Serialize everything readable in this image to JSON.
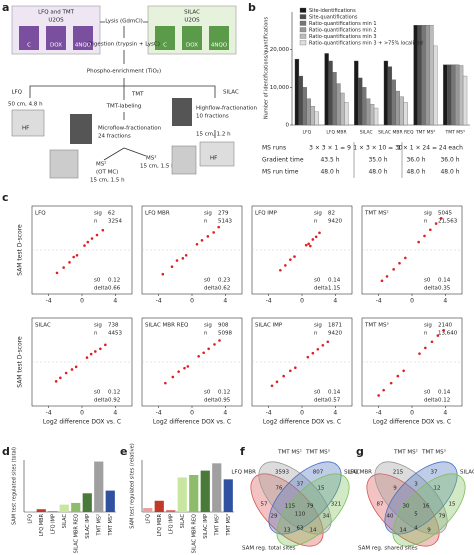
{
  "panel_labels": [
    "a",
    "b",
    "c",
    "d",
    "e",
    "f",
    "g"
  ],
  "diagram": {
    "lfq_tmt": "LFQ and TMT",
    "u2os_1": "U2OS",
    "c_1": "C",
    "dox_1": "DOX",
    "nqo_1": "4NQO",
    "silac": "SILAC",
    "u2os_2": "U2OS",
    "c_2": "C",
    "dox_2": "DOX",
    "nqo_2": "4NQO",
    "lysis": "Lysis (GdmCl)",
    "digestion": "Digestion (trypsin + LysC)",
    "enrichment": "Phospho-enrichment (TiO₂)",
    "lfq": "LFQ",
    "tmt": "TMT",
    "silac_branch": "SILAC",
    "lfq_column": "50 cm, 4.8 h",
    "hf_1": "HF",
    "tmt_labeling": "TMT-labeling",
    "microflow": "Microflow-fractionation",
    "micro_fractions": "24 fractions",
    "highflow": "Highflow-fractionation",
    "high_fractions": "10 fractions",
    "silac_column": "15 cm, 1.2 h",
    "hf_2": "HF",
    "ms2": "MS²",
    "ms2_mode": "(OT MC)",
    "ms2_column": "15 cm, 1.5 h",
    "ms3": "MS³",
    "ms3_column": "15 cm, 1.5 h"
  },
  "chart_data": [
    {
      "type": "grouped_bar",
      "ylabel": "Number of identifications/quantifications",
      "categories": [
        "LFQ",
        "LFQ MBR",
        "SILAC",
        "SILAC MBR REQ",
        "TMT MS²",
        "TMT MS³"
      ],
      "series": [
        {
          "name": "Site-identifications",
          "color": "#1a1a1a",
          "values": [
            17500,
            19000,
            17000,
            17000,
            26500,
            16000
          ]
        },
        {
          "name": "Site-quantifications",
          "color": "#4d4d4d",
          "values": [
            13000,
            17000,
            12500,
            15500,
            26500,
            16000
          ]
        },
        {
          "name": "Ratio-quantifications min 1",
          "color": "#777777",
          "values": [
            10000,
            14000,
            10000,
            12000,
            26500,
            16000
          ]
        },
        {
          "name": "Ratio-quantifications min 2",
          "color": "#999999",
          "values": [
            7000,
            11000,
            7000,
            9000,
            26500,
            16000
          ]
        },
        {
          "name": "Ratio-quantifications min 3",
          "color": "#bbbbbb",
          "values": [
            5000,
            8500,
            5500,
            7500,
            26500,
            15800
          ]
        },
        {
          "name": "Ratio-quantifications min 3 + >75% localized",
          "color": "#dddddd",
          "values": [
            3500,
            6000,
            4500,
            6000,
            21000,
            13000
          ]
        }
      ],
      "ylim": [
        0,
        30000
      ],
      "yticks": [
        0,
        {
          "value": 10000,
          "label": "10,000"
        },
        {
          "value": 20000,
          "label": "20,000"
        }
      ],
      "legend": "top-left"
    },
    {
      "type": "scatter",
      "label": "LFQ",
      "color": "#e02020",
      "xlim": [
        -6,
        6
      ],
      "ylim": [
        -10,
        10
      ],
      "xticks": [
        -4,
        0,
        4
      ],
      "ylabel": "SAM test D-score",
      "stat_names": [
        "sig",
        "n"
      ],
      "stat_values": [
        "62",
        "3254"
      ],
      "fit_names": [
        "s0",
        "delta"
      ],
      "fit_values": [
        "0.12",
        "0.66"
      ],
      "x": [
        -2.2,
        -1.5,
        -1.0,
        -0.6,
        0.3,
        0.7,
        1.2,
        1.8,
        2.5,
        -3.0
      ],
      "y": [
        -4,
        -2.8,
        -1.6,
        -1.2,
        1.0,
        1.8,
        2.6,
        3.4,
        4.5,
        -5.2
      ]
    },
    {
      "type": "scatter",
      "label": "LFQ MBR",
      "color": "#e02020",
      "xlim": [
        -6,
        6
      ],
      "ylim": [
        -10,
        10
      ],
      "xticks": [
        -4,
        0,
        4
      ],
      "stat_names": [
        "sig",
        "n"
      ],
      "stat_values": [
        "279",
        "5143"
      ],
      "fit_names": [
        "s0",
        "delta"
      ],
      "fit_values": [
        "0.23",
        "0.62"
      ],
      "x": [
        -3.5,
        -2.4,
        -1.8,
        -1.1,
        -0.7,
        0.6,
        1.2,
        1.9,
        2.6,
        3.2
      ],
      "y": [
        -5.5,
        -3.8,
        -2.4,
        -1.9,
        -1.2,
        1.3,
        2.2,
        3.1,
        4.0,
        5.2
      ]
    },
    {
      "type": "scatter",
      "label": "LFQ IMP",
      "color": "#e02020",
      "xlim": [
        -6,
        6
      ],
      "ylim": [
        -10,
        10
      ],
      "xticks": [
        -4,
        0,
        4
      ],
      "stat_names": [
        "sig",
        "n"
      ],
      "stat_values": [
        "82",
        "9420"
      ],
      "fit_names": [
        "s0",
        "delta"
      ],
      "fit_values": [
        "0.14",
        "1.15"
      ],
      "x": [
        -2.0,
        -1.4,
        -0.9,
        0.8,
        1.3,
        1.7,
        2.1,
        -2.6,
        0.5,
        1.0
      ],
      "y": [
        -3.5,
        -2.2,
        -1.5,
        1.4,
        2.4,
        3.0,
        3.9,
        -4.6,
        1.1,
        0.9
      ]
    },
    {
      "type": "scatter",
      "label": "TMT MS²",
      "color": "#e02020",
      "xlim": [
        -6,
        6
      ],
      "ylim": [
        -10,
        10
      ],
      "xticks": [
        -4,
        0,
        4
      ],
      "stat_names": [
        "sig",
        "n"
      ],
      "stat_values": [
        "5045",
        "21,563"
      ],
      "fit_names": [
        "s0",
        "delta"
      ],
      "fit_values": [
        "0.14",
        "0.35"
      ],
      "x": [
        -3.0,
        -2.2,
        -1.5,
        -0.8,
        0.8,
        1.5,
        2.2,
        2.9,
        3.5,
        -3.6
      ],
      "y": [
        -6.0,
        -4.4,
        -3.0,
        -1.8,
        1.8,
        3.2,
        4.6,
        6.0,
        7.2,
        -7.0
      ]
    },
    {
      "type": "scatter",
      "label": "SILAC",
      "color": "#e02020",
      "xlim": [
        -6,
        6
      ],
      "ylim": [
        -10,
        10
      ],
      "xticks": [
        -4,
        0,
        4
      ],
      "ylabel": "SAM test D-score",
      "xlabel": "Log2 difference DOX vs. C",
      "stat_names": [
        "sig",
        "n"
      ],
      "stat_values": [
        "738",
        "4453"
      ],
      "fit_names": [
        "s0",
        "delta"
      ],
      "fit_values": [
        "0.12",
        "0.92"
      ],
      "x": [
        -2.6,
        -1.9,
        -1.2,
        -0.7,
        0.6,
        1.1,
        1.6,
        2.2,
        2.8,
        -3.1
      ],
      "y": [
        -3.6,
        -2.5,
        -1.7,
        -1.1,
        1.0,
        1.8,
        2.4,
        3.0,
        3.9,
        -4.4
      ]
    },
    {
      "type": "scatter",
      "label": "SILAC MBR REQ",
      "color": "#e02020",
      "xlim": [
        -6,
        6
      ],
      "ylim": [
        -10,
        10
      ],
      "xticks": [
        -4,
        0,
        4
      ],
      "xlabel": "Log2 difference DOX vs. C",
      "stat_names": [
        "sig",
        "n"
      ],
      "stat_values": [
        "908",
        "5098"
      ],
      "fit_names": [
        "s0",
        "delta"
      ],
      "fit_values": [
        "0.12",
        "0.95"
      ],
      "x": [
        -3.2,
        -2.3,
        -1.6,
        -0.9,
        0.8,
        1.4,
        2.0,
        2.7,
        3.3,
        -0.5
      ],
      "y": [
        -4.8,
        -3.4,
        -2.2,
        -1.4,
        1.3,
        2.1,
        3.0,
        4.0,
        4.9,
        -1.0
      ]
    },
    {
      "type": "scatter",
      "label": "SILAC IMP",
      "color": "#e02020",
      "xlim": [
        -6,
        6
      ],
      "ylim": [
        -10,
        10
      ],
      "xticks": [
        -4,
        0,
        4
      ],
      "xlabel": "Log2 difference DOX vs. C",
      "stat_names": [
        "sig",
        "n"
      ],
      "stat_values": [
        "1871",
        "9420"
      ],
      "fit_names": [
        "s0",
        "delta"
      ],
      "fit_values": [
        "0.14",
        "0.57"
      ],
      "x": [
        -3.0,
        -2.2,
        -1.4,
        -0.8,
        0.7,
        1.3,
        1.9,
        2.5,
        3.1,
        -3.6
      ],
      "y": [
        -4.5,
        -3.2,
        -2.0,
        -1.3,
        1.1,
        2.0,
        2.9,
        3.8,
        4.6,
        -5.4
      ]
    },
    {
      "type": "scatter",
      "label": "TMT MS³",
      "color": "#e02020",
      "xlim": [
        -6,
        6
      ],
      "ylim": [
        -10,
        10
      ],
      "xticks": [
        -4,
        0,
        4
      ],
      "xlabel": "Log2 difference DOX vs. C",
      "stat_names": [
        "sig",
        "n"
      ],
      "stat_values": [
        "2140",
        "13,640"
      ],
      "fit_names": [
        "s0",
        "delta"
      ],
      "fit_values": [
        "0.14",
        "0.12"
      ],
      "x": [
        -3.4,
        -2.5,
        -1.7,
        -1.0,
        0.9,
        1.6,
        2.4,
        3.1,
        3.8,
        -4.0
      ],
      "y": [
        -6.4,
        -4.8,
        -3.2,
        -2.0,
        1.9,
        3.2,
        4.6,
        6.0,
        7.2,
        -7.6
      ]
    },
    {
      "type": "bar",
      "ylabel": "SAM test regulated sites (total)",
      "categories": [
        "LFQ",
        "LFQ MBR",
        "LFQ IMP",
        "SILAC",
        "SILAC MBR REQ",
        "SILAC IMP",
        "TMT MS²",
        "TMT MS³"
      ],
      "values": [
        62,
        279,
        82,
        738,
        908,
        1871,
        5045,
        2140
      ],
      "colors": [
        "#e8a0a0",
        "#c0392b",
        "#e06060",
        "#c8e6a0",
        "#8fbc6a",
        "#4a7a3a",
        "#a0a0a0",
        "#3050a0"
      ],
      "ylim": [
        0,
        5200
      ]
    },
    {
      "type": "bar",
      "ylabel": "SAM test regulated sites (relative)",
      "categories": [
        "LFQ",
        "LFQ MBR",
        "LFQ IMP",
        "SILAC",
        "SILAC MBR REQ",
        "SILAC IMP",
        "TMT MS²",
        "TMT MS³"
      ],
      "values": [
        0.019,
        0.054,
        0.0087,
        0.166,
        0.178,
        0.199,
        0.234,
        0.157
      ],
      "colors": [
        "#e8a0a0",
        "#c0392b",
        "#e06060",
        "#c8e6a0",
        "#8fbc6a",
        "#4a7a3a",
        "#a0a0a0",
        "#3050a0"
      ],
      "ylim": [
        0,
        0.25
      ]
    }
  ],
  "table_b": {
    "rows": [
      [
        "MS runs",
        "3 × 3 × 1 = 9",
        "1 × 3 × 10 = 30",
        "1 × 1 × 24 = 24 each"
      ],
      [
        "Gradient time",
        "43.5 h",
        "35.0 h",
        "36.0 h",
        "36.0 h"
      ],
      [
        "MS run time",
        "48.0 h",
        "48.0 h",
        "48.0 h",
        "48.0 h"
      ]
    ]
  },
  "venn": [
    {
      "sets": [
        "LFQ MBR",
        "TMT MS²",
        "TMT MS³",
        "SILAC"
      ],
      "colors": [
        "#d9534f",
        "#9a9a9a",
        "#4a6fc0",
        "#7cbf5a"
      ],
      "counts": [
        57,
        3593,
        807,
        321,
        37,
        76,
        15,
        29,
        34,
        115,
        79,
        110,
        63,
        13,
        14
      ],
      "caption": "SAM reg. total sites"
    },
    {
      "sets": [
        "LFQ MBR",
        "TMT MS²",
        "TMT MS³",
        "SILAC"
      ],
      "colors": [
        "#d9534f",
        "#9a9a9a",
        "#4a6fc0",
        "#7cbf5a"
      ],
      "counts": [
        87,
        215,
        37,
        15,
        3,
        9,
        12,
        40,
        79,
        30,
        16,
        5,
        4,
        14,
        9
      ],
      "caption": "SAM reg. shared sites"
    }
  ]
}
